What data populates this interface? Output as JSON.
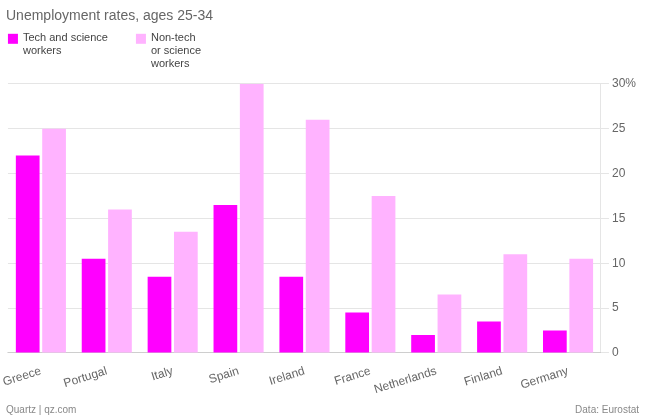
{
  "chart_data": {
    "type": "bar",
    "title": "Unemployment rates, ages 25-34",
    "categories": [
      "Greece",
      "Portugal",
      "Italy",
      "Spain",
      "Ireland",
      "France",
      "Netherlands",
      "Finland",
      "Germany"
    ],
    "series": [
      {
        "name": "Tech and science\nworkers",
        "color": "#FF00FF",
        "values": [
          22,
          10.5,
          8.5,
          16.5,
          8.5,
          4.5,
          2,
          3.5,
          2.5
        ]
      },
      {
        "name": "Non-tech\nor science\nworkers",
        "color": "#FFB3FF",
        "values": [
          25,
          16,
          13.5,
          30,
          26,
          17.5,
          6.5,
          11,
          10.5
        ]
      }
    ],
    "ylim": [
      0,
      30
    ],
    "yticks": [
      0,
      5,
      10,
      15,
      20,
      25,
      {
        "value": 30,
        "label": "30%"
      }
    ],
    "grid": true,
    "annotations": [
      "Quartz | qz.com",
      "Data: Eurostat"
    ]
  }
}
